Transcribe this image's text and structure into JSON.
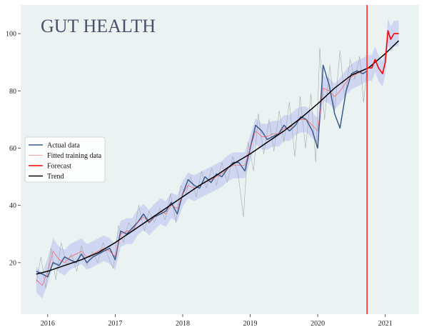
{
  "colors": {
    "plot_background": "#ebf2f2",
    "page_background": "#ffffff",
    "actual": "#3b5b8c",
    "fitted": "#ff4d4d",
    "forecast": "#ff0000",
    "trend": "#000000",
    "band": "#b8bff0",
    "raw": "#9aa0a0",
    "title": "#4a5068",
    "vline": "#ff2020"
  },
  "chart_data": {
    "type": "line",
    "title": "GUT HEALTH",
    "xlim": [
      2015.6,
      2021.5
    ],
    "ylim": [
      2,
      110
    ],
    "x_ticks": [
      {
        "value": 2016,
        "label": "2016"
      },
      {
        "value": 2017,
        "label": "2017"
      },
      {
        "value": 2018,
        "label": "2018"
      },
      {
        "value": 2019,
        "label": "2019"
      },
      {
        "value": 2020,
        "label": "2020"
      },
      {
        "value": 2021,
        "label": "2021"
      }
    ],
    "y_ticks": [
      {
        "value": 20,
        "label": "20"
      },
      {
        "value": 40,
        "label": "40"
      },
      {
        "value": 60,
        "label": "60"
      },
      {
        "value": 80,
        "label": "80"
      },
      {
        "value": 100,
        "label": "100"
      }
    ],
    "grid": false,
    "legend_position": "center-left",
    "forecast_start": 2020.73,
    "legend": [
      {
        "label": "Actual data",
        "key": "actual",
        "width": 1.5
      },
      {
        "label": "Fitted training data",
        "key": "fitted",
        "width": 0.6
      },
      {
        "label": "Forecast",
        "key": "forecast",
        "width": 1.5
      },
      {
        "label": "Trend",
        "key": "trend",
        "width": 1.5
      }
    ],
    "series": [
      {
        "name": "Actual data",
        "key": "actual",
        "points": [
          [
            2015.83,
            17
          ],
          [
            2015.92,
            16
          ],
          [
            2016.0,
            15
          ],
          [
            2016.08,
            20
          ],
          [
            2016.17,
            19
          ],
          [
            2016.25,
            22
          ],
          [
            2016.33,
            21
          ],
          [
            2016.42,
            20
          ],
          [
            2016.5,
            23
          ],
          [
            2016.58,
            20
          ],
          [
            2016.67,
            22
          ],
          [
            2016.75,
            23
          ],
          [
            2016.83,
            24
          ],
          [
            2016.92,
            25
          ],
          [
            2017.0,
            21
          ],
          [
            2017.08,
            31
          ],
          [
            2017.17,
            30
          ],
          [
            2017.25,
            32
          ],
          [
            2017.33,
            34
          ],
          [
            2017.42,
            37
          ],
          [
            2017.5,
            34
          ],
          [
            2017.58,
            36
          ],
          [
            2017.67,
            37
          ],
          [
            2017.75,
            38
          ],
          [
            2017.83,
            41
          ],
          [
            2017.92,
            37
          ],
          [
            2018.0,
            44
          ],
          [
            2018.08,
            49
          ],
          [
            2018.17,
            47
          ],
          [
            2018.25,
            46
          ],
          [
            2018.33,
            50
          ],
          [
            2018.42,
            48
          ],
          [
            2018.5,
            51
          ],
          [
            2018.58,
            50
          ],
          [
            2018.67,
            53
          ],
          [
            2018.75,
            55
          ],
          [
            2018.83,
            55
          ],
          [
            2018.92,
            52
          ],
          [
            2019.0,
            60
          ],
          [
            2019.08,
            68
          ],
          [
            2019.17,
            66
          ],
          [
            2019.25,
            63
          ],
          [
            2019.33,
            64
          ],
          [
            2019.42,
            65
          ],
          [
            2019.5,
            68
          ],
          [
            2019.58,
            66
          ],
          [
            2019.67,
            68
          ],
          [
            2019.75,
            71
          ],
          [
            2019.83,
            70
          ],
          [
            2019.92,
            66
          ],
          [
            2020.0,
            60
          ],
          [
            2020.08,
            89
          ],
          [
            2020.17,
            82
          ],
          [
            2020.25,
            72
          ],
          [
            2020.33,
            67
          ],
          [
            2020.42,
            80
          ],
          [
            2020.5,
            86
          ],
          [
            2020.58,
            87
          ],
          [
            2020.67,
            86
          ],
          [
            2020.73,
            87
          ]
        ]
      },
      {
        "name": "Fitted training data",
        "key": "fitted",
        "points": [
          [
            2015.83,
            14
          ],
          [
            2015.92,
            12
          ],
          [
            2016.0,
            17
          ],
          [
            2016.08,
            24
          ],
          [
            2016.17,
            21
          ],
          [
            2016.25,
            20
          ],
          [
            2016.33,
            22
          ],
          [
            2016.42,
            23
          ],
          [
            2016.5,
            24
          ],
          [
            2016.58,
            22
          ],
          [
            2016.67,
            23
          ],
          [
            2016.75,
            24
          ],
          [
            2016.83,
            25
          ],
          [
            2016.92,
            24
          ],
          [
            2017.0,
            22
          ],
          [
            2017.08,
            30
          ],
          [
            2017.17,
            31
          ],
          [
            2017.25,
            31
          ],
          [
            2017.33,
            34
          ],
          [
            2017.42,
            36
          ],
          [
            2017.5,
            34
          ],
          [
            2017.58,
            36
          ],
          [
            2017.67,
            38
          ],
          [
            2017.75,
            37
          ],
          [
            2017.83,
            40
          ],
          [
            2017.92,
            39
          ],
          [
            2018.0,
            44
          ],
          [
            2018.08,
            47
          ],
          [
            2018.17,
            46
          ],
          [
            2018.25,
            47
          ],
          [
            2018.33,
            48
          ],
          [
            2018.42,
            49
          ],
          [
            2018.5,
            50
          ],
          [
            2018.58,
            51
          ],
          [
            2018.67,
            53
          ],
          [
            2018.75,
            54
          ],
          [
            2018.83,
            54
          ],
          [
            2018.92,
            54
          ],
          [
            2019.0,
            60
          ],
          [
            2019.08,
            66
          ],
          [
            2019.17,
            64
          ],
          [
            2019.25,
            64
          ],
          [
            2019.33,
            65
          ],
          [
            2019.42,
            65
          ],
          [
            2019.5,
            67
          ],
          [
            2019.58,
            67
          ],
          [
            2019.67,
            69
          ],
          [
            2019.75,
            70
          ],
          [
            2019.83,
            70
          ],
          [
            2019.92,
            68
          ],
          [
            2020.0,
            66
          ],
          [
            2020.08,
            81
          ],
          [
            2020.17,
            80
          ],
          [
            2020.25,
            78
          ],
          [
            2020.33,
            80
          ],
          [
            2020.42,
            83
          ],
          [
            2020.5,
            85
          ],
          [
            2020.58,
            86
          ],
          [
            2020.67,
            87
          ],
          [
            2020.73,
            88
          ]
        ]
      },
      {
        "name": "Forecast",
        "key": "forecast",
        "points": [
          [
            2020.73,
            88
          ],
          [
            2020.8,
            88
          ],
          [
            2020.85,
            91
          ],
          [
            2020.9,
            88
          ],
          [
            2020.96,
            86
          ],
          [
            2021.0,
            90
          ],
          [
            2021.04,
            101
          ],
          [
            2021.08,
            98
          ],
          [
            2021.13,
            100
          ],
          [
            2021.2,
            100
          ]
        ]
      },
      {
        "name": "Trend",
        "key": "trend",
        "points": [
          [
            2015.83,
            16
          ],
          [
            2016.0,
            17
          ],
          [
            2016.25,
            19
          ],
          [
            2016.5,
            21
          ],
          [
            2016.75,
            23.5
          ],
          [
            2017.0,
            27
          ],
          [
            2017.25,
            31
          ],
          [
            2017.5,
            35
          ],
          [
            2017.75,
            39
          ],
          [
            2018.0,
            43
          ],
          [
            2018.25,
            47
          ],
          [
            2018.5,
            50.5
          ],
          [
            2018.75,
            54.5
          ],
          [
            2019.0,
            58
          ],
          [
            2019.25,
            62
          ],
          [
            2019.5,
            66
          ],
          [
            2019.75,
            70.5
          ],
          [
            2020.0,
            75.5
          ],
          [
            2020.25,
            81
          ],
          [
            2020.5,
            85.5
          ],
          [
            2020.75,
            88
          ],
          [
            2021.0,
            93
          ],
          [
            2021.2,
            97.5
          ]
        ]
      }
    ],
    "raw_noise": [
      [
        2015.83,
        13
      ],
      [
        2015.9,
        22
      ],
      [
        2015.97,
        11
      ],
      [
        2016.05,
        25
      ],
      [
        2016.12,
        14
      ],
      [
        2016.2,
        27
      ],
      [
        2016.28,
        19
      ],
      [
        2016.35,
        23
      ],
      [
        2016.43,
        17
      ],
      [
        2016.5,
        26
      ],
      [
        2016.58,
        19
      ],
      [
        2016.66,
        24
      ],
      [
        2016.74,
        20
      ],
      [
        2016.82,
        27
      ],
      [
        2016.9,
        22
      ],
      [
        2016.97,
        18
      ],
      [
        2017.05,
        33
      ],
      [
        2017.12,
        27
      ],
      [
        2017.2,
        34
      ],
      [
        2017.28,
        31
      ],
      [
        2017.35,
        40
      ],
      [
        2017.43,
        31
      ],
      [
        2017.5,
        38
      ],
      [
        2017.58,
        34
      ],
      [
        2017.66,
        39
      ],
      [
        2017.74,
        35
      ],
      [
        2017.82,
        44
      ],
      [
        2017.9,
        34
      ],
      [
        2017.97,
        47
      ],
      [
        2018.05,
        44
      ],
      [
        2018.12,
        50
      ],
      [
        2018.2,
        43
      ],
      [
        2018.28,
        52
      ],
      [
        2018.35,
        46
      ],
      [
        2018.43,
        53
      ],
      [
        2018.5,
        47
      ],
      [
        2018.58,
        55
      ],
      [
        2018.66,
        48
      ],
      [
        2018.74,
        57
      ],
      [
        2018.82,
        51
      ],
      [
        2018.9,
        36
      ],
      [
        2018.97,
        62
      ],
      [
        2019.05,
        52
      ],
      [
        2019.12,
        72
      ],
      [
        2019.2,
        58
      ],
      [
        2019.28,
        70
      ],
      [
        2019.35,
        59
      ],
      [
        2019.43,
        73
      ],
      [
        2019.5,
        62
      ],
      [
        2019.58,
        76
      ],
      [
        2019.66,
        57
      ],
      [
        2019.74,
        78
      ],
      [
        2019.82,
        60
      ],
      [
        2019.9,
        79
      ],
      [
        2019.97,
        55
      ],
      [
        2020.03,
        95
      ],
      [
        2020.1,
        70
      ],
      [
        2020.18,
        89
      ],
      [
        2020.25,
        73
      ],
      [
        2020.33,
        94
      ],
      [
        2020.4,
        77
      ],
      [
        2020.48,
        91
      ],
      [
        2020.55,
        84
      ],
      [
        2020.62,
        92
      ],
      [
        2020.68,
        76
      ],
      [
        2020.73,
        88
      ]
    ],
    "uncertainty_band": {
      "half_width": 4.5
    }
  }
}
